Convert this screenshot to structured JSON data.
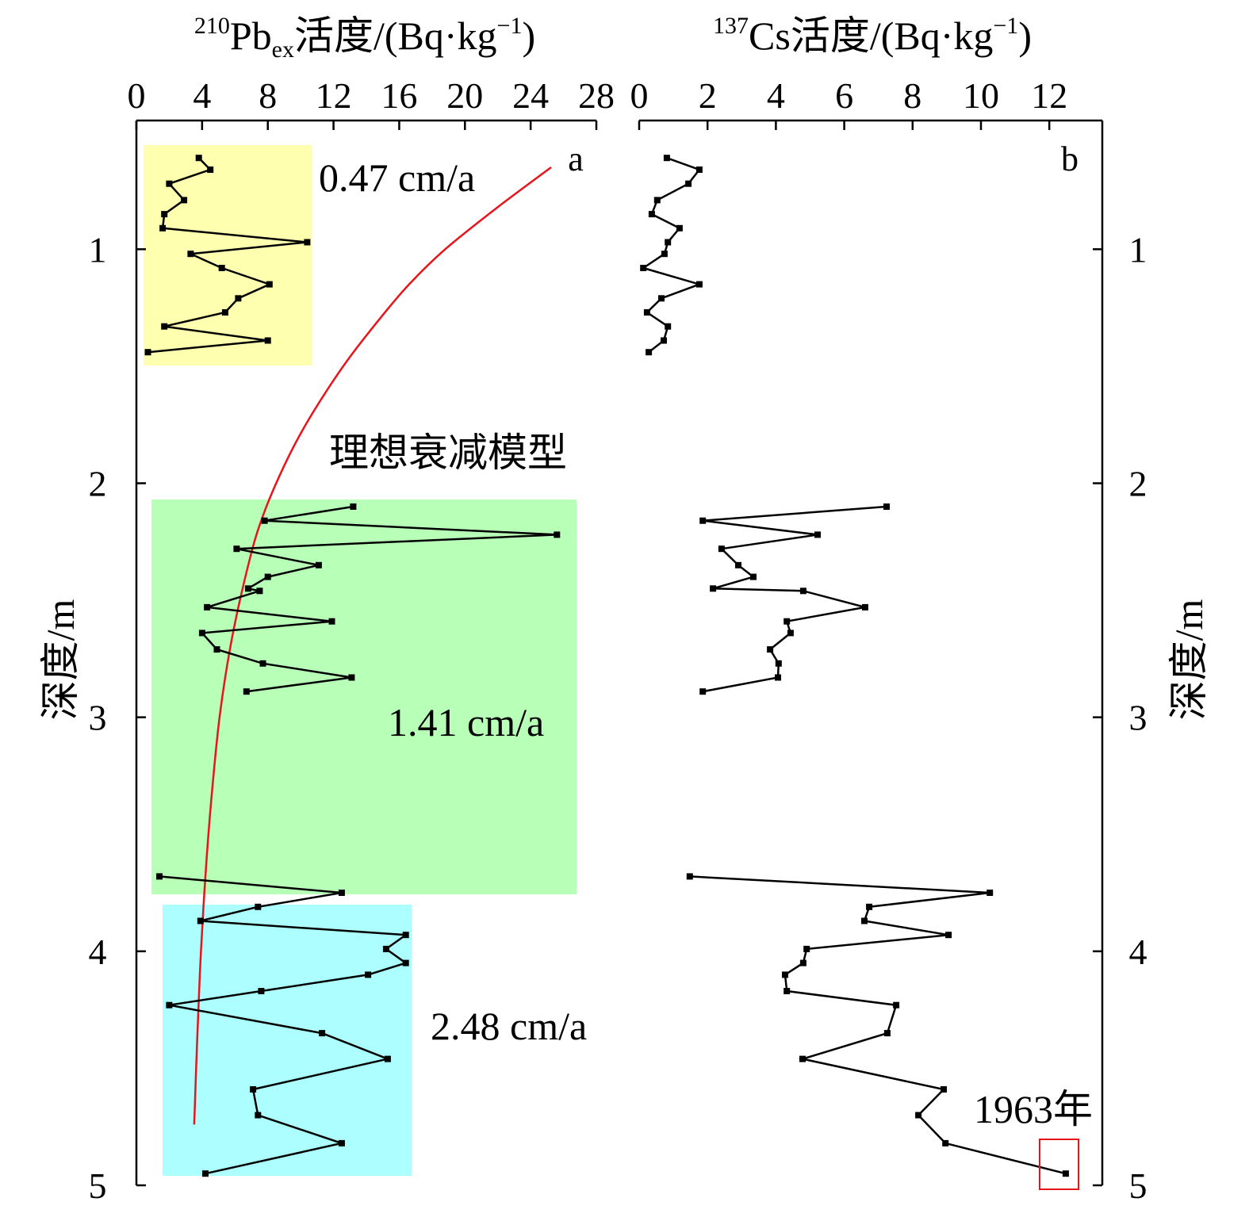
{
  "colors": {
    "series": "#000000",
    "model_curve": "#e8141b",
    "annotation_text": "#ee1c1c",
    "highlight_upper": "#ffffb0",
    "highlight_middle": "#b8ffb8",
    "highlight_lower": "#adffff",
    "marker_box": "#e8141b"
  },
  "chart_data": [
    {
      "type": "line",
      "panel_label": "a",
      "xlabel": {
        "sup_pre": "210",
        "main": "Pb",
        "sub": "ex",
        "rest": "活度/(Bq·kg",
        "sup": "−1",
        "close": ")"
      },
      "ylabel": "深度/m",
      "xlim": [
        0,
        28
      ],
      "ylim": [
        0.45,
        5
      ],
      "x_axis_on_top": true,
      "y_inverted": true,
      "grid": false,
      "x_ticks": [
        0,
        4,
        8,
        12,
        16,
        20,
        24,
        28
      ],
      "y_ticks": [
        1,
        2,
        3,
        4,
        5
      ],
      "series": [
        {
          "x": [
            3.8,
            4.5,
            2.0,
            2.9,
            1.7,
            1.6,
            10.4,
            3.3,
            5.2,
            8.1,
            6.2,
            5.4,
            1.7,
            8.0,
            0.7
          ],
          "y": [
            0.61,
            0.66,
            0.72,
            0.79,
            0.85,
            0.91,
            0.97,
            1.02,
            1.08,
            1.15,
            1.21,
            1.27,
            1.33,
            1.39,
            1.44
          ]
        },
        {
          "x": [
            13.2,
            7.8,
            25.6,
            6.1,
            11.1,
            8.0,
            6.8,
            7.5,
            4.3,
            11.9,
            4.0,
            4.9,
            7.7,
            13.1,
            6.7
          ],
          "y": [
            2.1,
            2.16,
            2.22,
            2.28,
            2.35,
            2.4,
            2.45,
            2.46,
            2.53,
            2.59,
            2.64,
            2.71,
            2.77,
            2.83,
            2.89
          ]
        },
        {
          "x": [
            1.4,
            12.5,
            7.4,
            3.9,
            16.4,
            15.2,
            16.4,
            14.1,
            7.6,
            2.0,
            11.3,
            15.3,
            7.1,
            7.4,
            12.5,
            4.2
          ],
          "y": [
            3.68,
            3.75,
            3.81,
            3.87,
            3.93,
            3.99,
            4.05,
            4.1,
            4.17,
            4.23,
            4.35,
            4.46,
            4.59,
            4.7,
            4.82,
            4.95
          ]
        }
      ],
      "model": {
        "name": "理想衰减模型",
        "x": [
          25.25,
          22.0,
          18.8,
          16.6,
          14.9,
          13.0,
          11.35,
          9.9,
          8.7,
          7.7,
          6.95,
          5.85,
          5.1,
          4.6,
          4.22,
          3.93,
          3.72,
          3.52
        ],
        "y": [
          0.65,
          0.82,
          1.0,
          1.15,
          1.29,
          1.46,
          1.63,
          1.8,
          1.97,
          2.14,
          2.31,
          2.65,
          2.98,
          3.32,
          3.66,
          4.0,
          4.34,
          4.74
        ]
      },
      "annotations": [
        "0.47 cm/a",
        "1.41 cm/a",
        "2.48 cm/a"
      ]
    },
    {
      "type": "line",
      "panel_label": "b",
      "xlabel": {
        "sup_pre": "137",
        "main": "Cs",
        "rest": "活度/(Bq·kg",
        "sup": "−1",
        "close": ")"
      },
      "ylabel": "深度/m",
      "xlim": [
        0,
        13.55
      ],
      "ylim": [
        0.45,
        5
      ],
      "x_axis_on_top": true,
      "y_inverted": true,
      "grid": false,
      "x_ticks": [
        0,
        2,
        4,
        6,
        8,
        10,
        12
      ],
      "y_ticks": [
        1,
        2,
        3,
        4,
        5
      ],
      "series": [
        {
          "x": [
            0.81,
            1.76,
            1.44,
            0.53,
            0.37,
            1.18,
            0.84,
            0.74,
            0.12,
            1.76,
            0.65,
            0.23,
            0.84,
            0.72,
            0.28
          ],
          "y": [
            0.61,
            0.66,
            0.72,
            0.79,
            0.85,
            0.91,
            0.97,
            1.02,
            1.08,
            1.15,
            1.21,
            1.27,
            1.33,
            1.39,
            1.44
          ]
        },
        {
          "x": [
            7.24,
            1.86,
            5.22,
            2.41,
            2.9,
            3.34,
            2.16,
            4.8,
            6.61,
            4.32,
            4.43,
            3.83,
            4.08,
            4.06,
            1.86
          ],
          "y": [
            2.1,
            2.16,
            2.22,
            2.28,
            2.35,
            2.4,
            2.45,
            2.46,
            2.53,
            2.59,
            2.64,
            2.71,
            2.77,
            2.83,
            2.89
          ]
        },
        {
          "x": [
            1.48,
            10.26,
            6.73,
            6.59,
            9.05,
            4.9,
            4.8,
            4.27,
            4.32,
            7.52,
            7.26,
            4.78,
            8.91,
            8.17,
            8.96,
            12.48
          ],
          "y": [
            3.68,
            3.75,
            3.81,
            3.87,
            3.93,
            3.99,
            4.05,
            4.1,
            4.17,
            4.23,
            4.35,
            4.46,
            4.59,
            4.7,
            4.82,
            4.95
          ]
        }
      ],
      "annotations": [
        "1963年"
      ]
    }
  ]
}
